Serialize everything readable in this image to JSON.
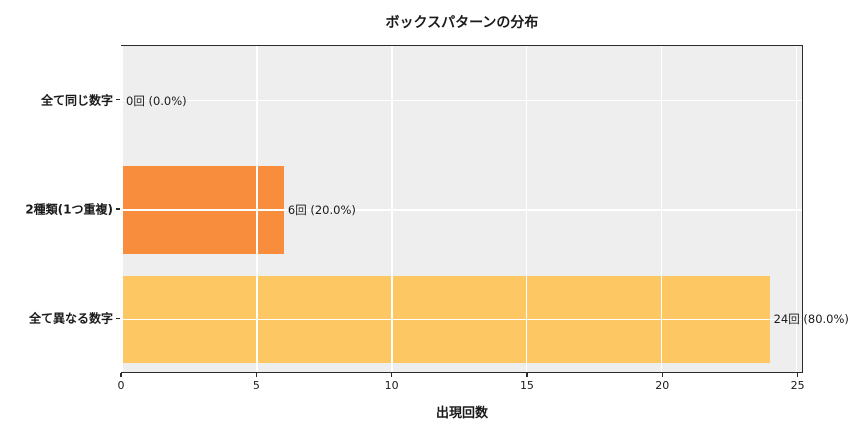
{
  "title": "ボックスパターンの分布",
  "x_axis_title": "出現回数",
  "chart_data": {
    "type": "bar",
    "orientation": "horizontal",
    "title": "ボックスパターンの分布",
    "xlabel": "出現回数",
    "ylabel": "",
    "categories": [
      "全て同じ数字",
      "2種類(1つ重複)",
      "全て異なる数字"
    ],
    "values": [
      0,
      6,
      24
    ],
    "value_labels": [
      "0回 (0.0%)",
      "6回 (20.0%)",
      "24回 (80.0%)"
    ],
    "bar_colors": [
      null,
      "#f88d3e",
      "#fdc863"
    ],
    "xlim": [
      0,
      25.2
    ],
    "xticks": [
      0,
      5,
      10,
      15,
      20,
      25
    ],
    "grid": true,
    "grid_over_bars": true,
    "bar_height_fraction": 0.8,
    "plot_background": "#eeeeee",
    "grid_color": "#ffffff",
    "spine_color": "#2b2b2b",
    "legend": "none"
  }
}
